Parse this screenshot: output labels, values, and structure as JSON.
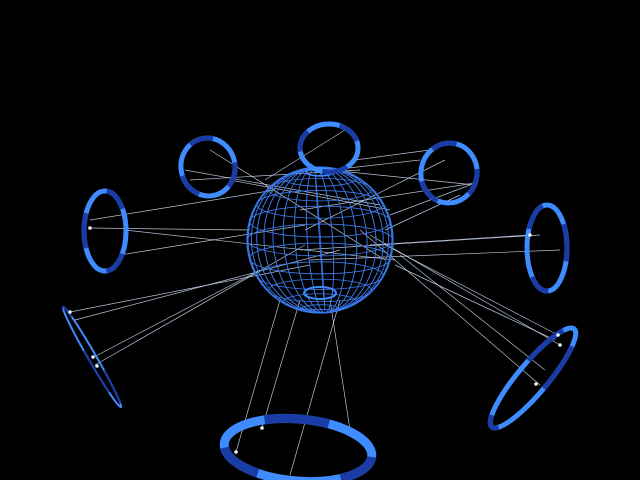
{
  "scene": {
    "background": "#000000",
    "colors": {
      "wire": "#3a78e8",
      "ring_light": "#3f8cff",
      "ring_dark": "#1a3ca6",
      "line": "#d6e6ff",
      "node": "#e8f0ff"
    },
    "sphere": {
      "icon": "wireframe-sphere-icon"
    },
    "rings": [
      {
        "name": "ring-top-left",
        "icon": "ring-icon"
      },
      {
        "name": "ring-top",
        "icon": "ring-icon"
      },
      {
        "name": "ring-top-right",
        "icon": "ring-icon"
      },
      {
        "name": "ring-left",
        "icon": "ring-icon"
      },
      {
        "name": "ring-right",
        "icon": "ring-icon"
      },
      {
        "name": "ring-far-left",
        "icon": "ring-icon"
      },
      {
        "name": "ring-lower-right",
        "icon": "ring-icon"
      },
      {
        "name": "ring-bottom",
        "icon": "ring-icon"
      }
    ]
  }
}
